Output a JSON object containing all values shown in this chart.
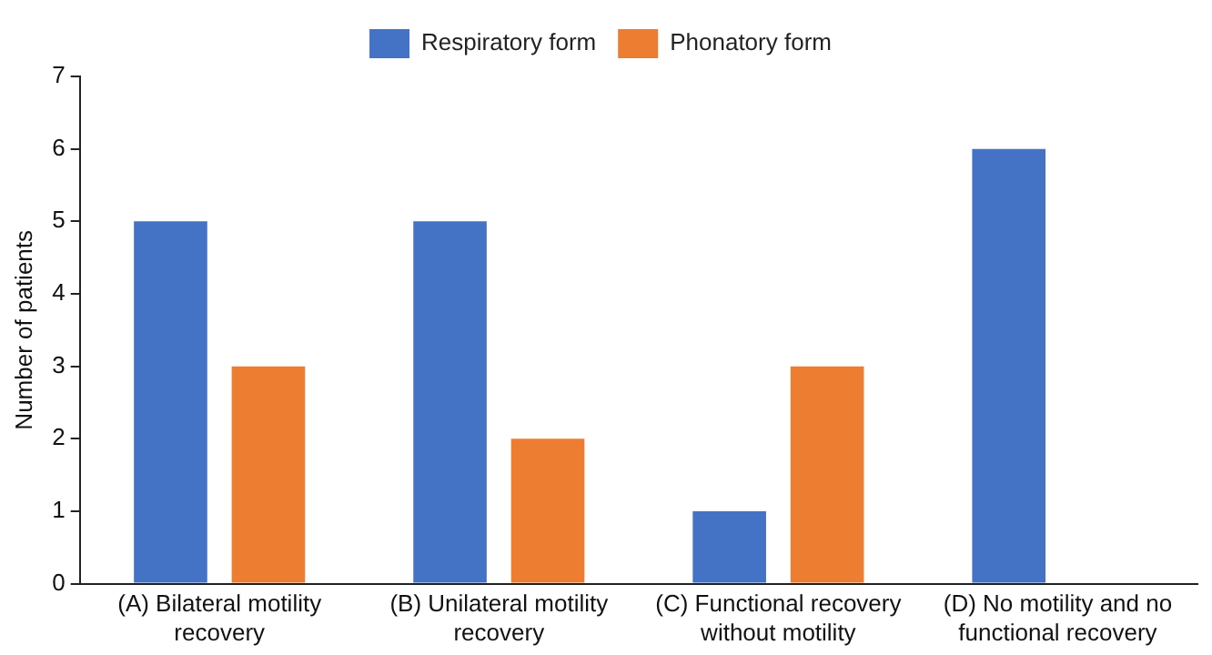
{
  "chart_data": {
    "type": "bar",
    "ylabel": "Number of patients",
    "categories": [
      "(A) Bilateral motility recovery",
      "(B) Unilateral motility recovery",
      "(C) Functional recovery without motility",
      "(D) No motility and no functional recovery"
    ],
    "series": [
      {
        "name": "Respiratory form",
        "color": "#4472c4",
        "values": [
          5,
          5,
          1,
          6
        ]
      },
      {
        "name": "Phonatory form",
        "color": "#ed7d31",
        "values": [
          3,
          2,
          3,
          0
        ]
      }
    ],
    "ylim": [
      0,
      7
    ],
    "yticks": [
      0,
      1,
      2,
      3,
      4,
      5,
      6,
      7
    ],
    "grid": false,
    "legend": "top"
  }
}
